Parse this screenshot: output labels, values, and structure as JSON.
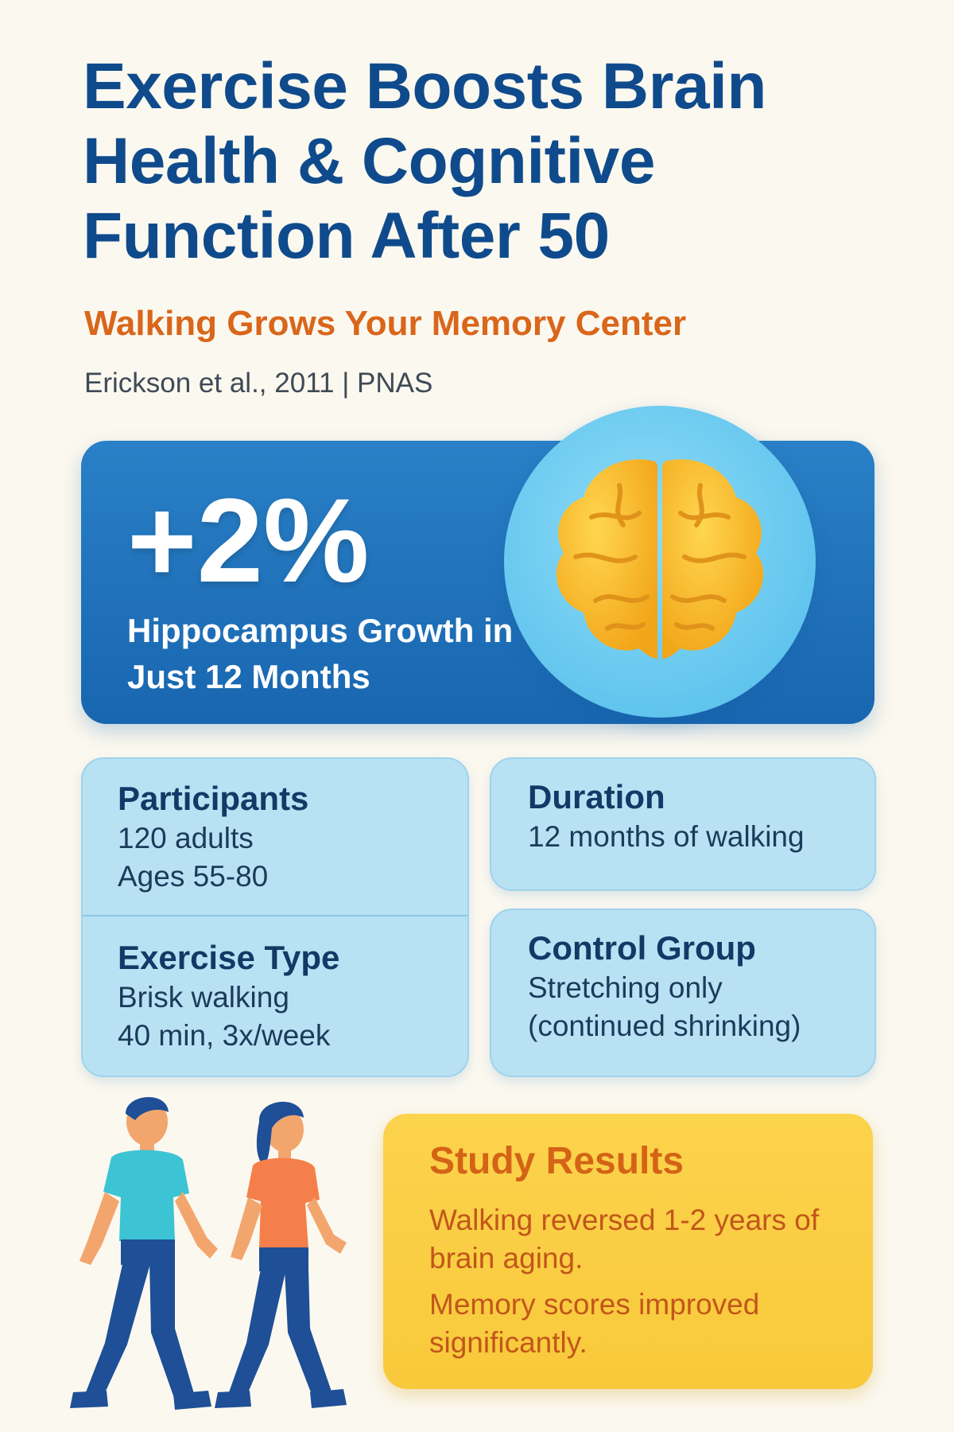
{
  "header": {
    "title": "Exercise Boosts Brain Health & Cognitive Function After 50",
    "subtitle": "Walking Grows Your Memory Center",
    "citation": "Erickson et al., 2011 | PNAS"
  },
  "hero": {
    "value": "+2%",
    "label": "Hippocampus Growth in Just 12 Months",
    "icon": "brain-icon"
  },
  "cards": {
    "participants": {
      "title": "Participants",
      "lines": [
        "120 adults",
        "Ages 55-80"
      ]
    },
    "exercise_type": {
      "title": "Exercise Type",
      "lines": [
        "Brisk walking",
        "40 min, 3x/week"
      ]
    },
    "duration": {
      "title": "Duration",
      "lines": [
        "12 months of walking"
      ]
    },
    "control_group": {
      "title": "Control Group",
      "lines": [
        "Stretching only",
        "(continued shrinking)"
      ]
    }
  },
  "results": {
    "title": "Study Results",
    "lines": [
      "Walking reversed 1-2 years of brain aging.",
      "Memory scores improved significantly."
    ]
  },
  "illustration": {
    "icon": "walking-couple-icon"
  },
  "colors": {
    "background": "#fbf8ef",
    "title": "#0f4b8c",
    "accent_orange": "#d9661a",
    "hero_blue": "#1866b0",
    "card_blue": "#b8e2f3",
    "results_yellow": "#fcd34d",
    "brain_yellow": "#f8b52a"
  }
}
